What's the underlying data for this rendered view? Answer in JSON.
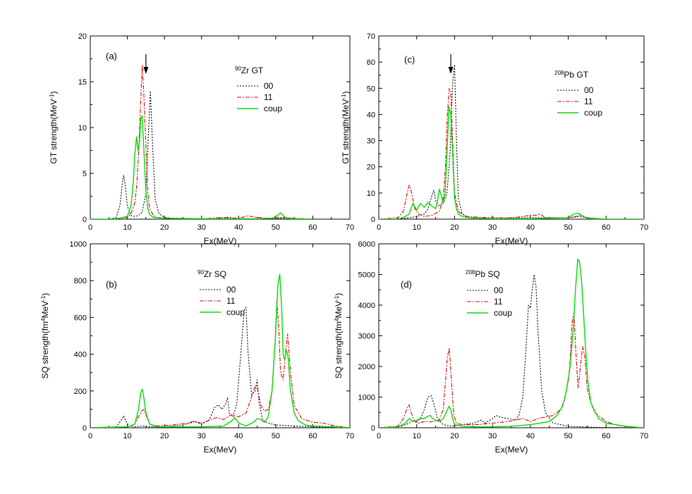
{
  "chart_data": [
    {
      "type": "line",
      "panel_label": "(a)",
      "title": "Zr GT",
      "title_sup": "90",
      "xlabel": "Ex(MeV)",
      "ylabel": "GT strength(MeV",
      "ylabel_sup": "-1",
      "ylabel_end": ")",
      "xlim": [
        0,
        70
      ],
      "ylim": [
        0,
        20
      ],
      "xticks": [
        0,
        10,
        20,
        30,
        40,
        50,
        60,
        70
      ],
      "yticks": [
        0,
        5,
        10,
        15,
        20
      ],
      "arrow_x": 15,
      "series": [
        {
          "name": "00",
          "color": "#000000",
          "dash": "2,2",
          "x": [
            0,
            5,
            7,
            8,
            8.6,
            9,
            9.5,
            10,
            11,
            12,
            13,
            14,
            15,
            15.6,
            16.2,
            16.8,
            17.5,
            18.5,
            20,
            22,
            30,
            37,
            43,
            48,
            52,
            55,
            60
          ],
          "y": [
            0,
            0,
            0.2,
            1.5,
            3.8,
            4.8,
            3.5,
            1.4,
            0.4,
            0.3,
            0.4,
            0.8,
            2.8,
            8.5,
            14,
            8,
            2.2,
            0.6,
            0.2,
            0.1,
            0.05,
            0.1,
            0.05,
            0.05,
            0.1,
            0.05,
            0
          ]
        },
        {
          "name": "11",
          "color": "#e00000",
          "dash": "6,2,2,2",
          "x": [
            0,
            5,
            8,
            10,
            11,
            12,
            12.5,
            13,
            13.5,
            14,
            14.4,
            15,
            15.5,
            16,
            17,
            18,
            20,
            30,
            37,
            40,
            42.5,
            45,
            48,
            50,
            52,
            55,
            60
          ],
          "y": [
            0,
            0,
            0.1,
            0.2,
            0.6,
            1.8,
            3.5,
            7,
            12,
            16.8,
            14,
            8,
            3,
            1.2,
            0.4,
            0.2,
            0.1,
            0.05,
            0.2,
            0.1,
            0.35,
            0.2,
            0.1,
            0.15,
            0.2,
            0.1,
            0
          ]
        },
        {
          "name": "coup",
          "color": "#00dd00",
          "dash": "",
          "x": [
            0,
            5,
            8,
            10,
            11,
            11.6,
            12,
            12.5,
            12.9,
            13.3,
            13.6,
            14,
            14.4,
            15,
            15.5,
            16,
            17,
            20,
            30,
            45,
            49,
            50.5,
            51.3,
            52,
            53,
            55,
            60
          ],
          "y": [
            0,
            0,
            0.1,
            0.3,
            1.5,
            4,
            7,
            9,
            7.5,
            8.5,
            11,
            11.3,
            8,
            3,
            1.2,
            0.5,
            0.2,
            0.1,
            0.05,
            0.05,
            0.1,
            0.4,
            0.7,
            0.4,
            0.1,
            0.05,
            0
          ]
        }
      ]
    },
    {
      "type": "line",
      "panel_label": "(b)",
      "title": "Zr SQ",
      "title_sup": "90",
      "xlabel": "Ex(MeV)",
      "ylabel": "SQ strength(fm",
      "ylabel_sup": "4",
      "ylabel_mid": "MeV",
      "ylabel_sup2": "-1",
      "ylabel_end": ")",
      "xlim": [
        0,
        70
      ],
      "ylim": [
        0,
        1000
      ],
      "xticks": [
        0,
        10,
        20,
        30,
        40,
        50,
        60,
        70
      ],
      "yticks": [
        0,
        200,
        400,
        600,
        800,
        1000
      ],
      "series": [
        {
          "name": "00",
          "color": "#000000",
          "dash": "2,2",
          "x": [
            0,
            7,
            8.5,
            9,
            9.6,
            10.5,
            12,
            14,
            16,
            20,
            25,
            27,
            28,
            30,
            32,
            33.5,
            34.5,
            35.5,
            36.5,
            37,
            37.5,
            38.5,
            39.5,
            40.5,
            41.5,
            42,
            42.5,
            43.5,
            44.5,
            45,
            45.5,
            46.5,
            48,
            50,
            55,
            60,
            70
          ],
          "y": [
            0,
            5,
            45,
            65,
            35,
            10,
            5,
            10,
            5,
            5,
            15,
            25,
            35,
            20,
            40,
            110,
            125,
            100,
            130,
            165,
            80,
            60,
            130,
            380,
            640,
            655,
            420,
            180,
            200,
            260,
            140,
            40,
            25,
            15,
            10,
            5,
            0
          ]
        },
        {
          "name": "11",
          "color": "#e00000",
          "dash": "6,2,2,2",
          "x": [
            0,
            10,
            12,
            13,
            14,
            14.5,
            15,
            16,
            18,
            22,
            26,
            28,
            30,
            32,
            34,
            36,
            38,
            40,
            42,
            43,
            44.5,
            45,
            46,
            47,
            48,
            49,
            49.8,
            50.3,
            50.8,
            51.3,
            52,
            52.7,
            53.2,
            54,
            55,
            57,
            60,
            63,
            66,
            70
          ],
          "y": [
            0,
            5,
            20,
            60,
            95,
            100,
            70,
            20,
            10,
            15,
            25,
            35,
            25,
            40,
            55,
            45,
            70,
            60,
            80,
            140,
            230,
            220,
            120,
            90,
            100,
            200,
            450,
            690,
            550,
            300,
            260,
            420,
            510,
            300,
            120,
            50,
            30,
            25,
            10,
            0
          ]
        },
        {
          "name": "coup",
          "color": "#00dd00",
          "dash": "",
          "x": [
            0,
            10,
            12,
            13,
            13.6,
            14,
            14.4,
            15,
            16,
            18,
            22,
            30,
            36,
            38,
            39,
            40,
            42,
            44,
            45,
            46,
            47,
            48,
            49,
            50,
            50.6,
            51.1,
            51.6,
            52,
            52.4,
            52.9,
            53.3,
            54,
            55,
            56,
            58,
            60,
            65,
            70
          ],
          "y": [
            0,
            5,
            20,
            100,
            190,
            210,
            170,
            80,
            20,
            5,
            5,
            5,
            10,
            35,
            55,
            25,
            10,
            30,
            50,
            45,
            30,
            60,
            200,
            520,
            780,
            835,
            650,
            400,
            370,
            420,
            390,
            200,
            80,
            40,
            15,
            10,
            5,
            0
          ]
        }
      ]
    },
    {
      "type": "line",
      "panel_label": "(c)",
      "title": "Pb GT",
      "title_sup": "208",
      "xlabel": "Ex(MeV)",
      "ylabel": "GT strength(MeV",
      "ylabel_sup": "-1",
      "ylabel_end": ")",
      "xlim": [
        0,
        70
      ],
      "ylim": [
        0,
        70
      ],
      "xticks": [
        0,
        10,
        20,
        30,
        40,
        50,
        60,
        70
      ],
      "yticks": [
        0,
        10,
        20,
        30,
        40,
        50,
        60,
        70
      ],
      "arrow_x": 19,
      "series": [
        {
          "name": "00",
          "color": "#000000",
          "dash": "2,2",
          "x": [
            0,
            5,
            8,
            10,
            12,
            13,
            14,
            14.5,
            15,
            16,
            17,
            18,
            18.8,
            19.5,
            20,
            20.5,
            21,
            22,
            24,
            30,
            40,
            50,
            53,
            55,
            60,
            70
          ],
          "y": [
            0,
            0,
            0.5,
            1,
            2,
            4,
            9,
            11,
            7,
            5,
            6,
            10,
            25,
            52,
            59,
            30,
            8,
            2,
            0.5,
            0.3,
            0.5,
            0.5,
            1,
            0.5,
            0,
            0
          ]
        },
        {
          "name": "11",
          "color": "#e00000",
          "dash": "6,2,2,2",
          "x": [
            0,
            5,
            6.5,
            7.5,
            8,
            8.5,
            9.5,
            10.5,
            12,
            14,
            16,
            17,
            17.6,
            18.1,
            18.6,
            19,
            19.5,
            20,
            21,
            23,
            30,
            35,
            38,
            40,
            41.5,
            42.5,
            44,
            46,
            50,
            52,
            53,
            55,
            60,
            70
          ],
          "y": [
            0,
            0.5,
            3,
            10,
            13,
            11,
            4,
            2,
            1,
            1.5,
            3,
            8,
            20,
            40,
            50,
            48,
            30,
            10,
            3,
            1,
            0.5,
            0.5,
            1,
            1.5,
            1.5,
            2,
            0.5,
            0.5,
            0.5,
            1,
            1.5,
            0.5,
            0,
            0
          ]
        },
        {
          "name": "coup",
          "color": "#00dd00",
          "dash": "",
          "x": [
            0,
            5,
            7,
            8,
            9,
            10,
            11,
            12,
            13,
            14,
            15,
            15.5,
            16,
            16.5,
            17,
            17.5,
            18,
            18.5,
            19,
            19.5,
            20,
            20.5,
            21,
            22,
            24,
            30,
            40,
            50,
            51.5,
            52.5,
            53.5,
            55,
            60,
            70
          ],
          "y": [
            0,
            0,
            1,
            2,
            6,
            3.5,
            6,
            4.5,
            6.5,
            5,
            4,
            7,
            11.5,
            9,
            6,
            10,
            25,
            43,
            40,
            25,
            8,
            4,
            2,
            1,
            0.5,
            0.2,
            0.2,
            0.5,
            2,
            2.3,
            1.5,
            0.3,
            0,
            0
          ]
        }
      ]
    },
    {
      "type": "line",
      "panel_label": "(d)",
      "title": "Pb SQ",
      "title_sup": "208",
      "xlabel": "Ex(MeV)",
      "ylabel": "SQ strength(fm",
      "ylabel_sup": "4",
      "ylabel_mid": "MeV",
      "ylabel_sup2": "-1",
      "ylabel_end": ")",
      "xlim": [
        0,
        70
      ],
      "ylim": [
        0,
        6000
      ],
      "xticks": [
        0,
        10,
        20,
        30,
        40,
        50,
        60,
        70
      ],
      "yticks": [
        0,
        1000,
        2000,
        3000,
        4000,
        5000,
        6000
      ],
      "series": [
        {
          "name": "00",
          "color": "#000000",
          "dash": "2,2",
          "x": [
            0,
            6,
            8,
            9,
            10,
            11,
            12,
            13,
            13.8,
            14.5,
            15.5,
            17,
            19,
            22,
            25,
            27,
            28,
            30,
            31,
            32,
            34,
            36,
            37,
            38,
            38.8,
            39.5,
            40,
            40.5,
            41,
            41.5,
            42,
            43,
            44,
            46,
            50,
            55,
            60,
            70
          ],
          "y": [
            0,
            50,
            150,
            250,
            200,
            300,
            600,
            1000,
            1050,
            800,
            300,
            100,
            50,
            100,
            150,
            250,
            150,
            300,
            400,
            350,
            300,
            250,
            400,
            1000,
            2500,
            4000,
            3900,
            4500,
            5000,
            4600,
            3200,
            1200,
            500,
            150,
            50,
            20,
            10,
            0
          ]
        },
        {
          "name": "11",
          "color": "#e00000",
          "dash": "6,2,2,2",
          "x": [
            0,
            5,
            6.5,
            7.5,
            8,
            8.5,
            9.5,
            10.5,
            12,
            14,
            16,
            17,
            17.6,
            18.1,
            18.6,
            19.2,
            19.8,
            20.5,
            22,
            26,
            30,
            34,
            36,
            38,
            40,
            42,
            44,
            46,
            48,
            49,
            50,
            50.5,
            51,
            51.5,
            52,
            52.6,
            53.2,
            53.8,
            54.4,
            55,
            56,
            57,
            58,
            60,
            63,
            66,
            70
          ],
          "y": [
            0,
            50,
            300,
            650,
            750,
            500,
            200,
            150,
            200,
            200,
            250,
            600,
            1500,
            2300,
            2600,
            1500,
            400,
            150,
            100,
            100,
            150,
            200,
            250,
            300,
            200,
            300,
            350,
            400,
            600,
            900,
            1500,
            2200,
            3400,
            3750,
            2500,
            1300,
            2000,
            2650,
            2300,
            1300,
            800,
            500,
            400,
            200,
            80,
            30,
            0
          ]
        },
        {
          "name": "coup",
          "color": "#00dd00",
          "dash": "",
          "x": [
            0,
            5,
            7,
            8,
            9,
            10,
            11,
            12,
            13,
            13.6,
            14.2,
            15,
            16,
            17,
            18,
            18.5,
            19,
            19.5,
            20,
            22,
            26,
            30,
            35,
            40,
            45,
            47,
            48.5,
            49.5,
            50.5,
            51.3,
            51.9,
            52.5,
            53,
            53.5,
            54,
            54.6,
            55.2,
            56,
            58,
            60,
            65,
            70
          ],
          "y": [
            0,
            20,
            150,
            300,
            200,
            250,
            300,
            300,
            380,
            400,
            300,
            250,
            200,
            300,
            550,
            700,
            600,
            300,
            100,
            50,
            30,
            30,
            50,
            100,
            200,
            400,
            700,
            1200,
            2000,
            3200,
            4500,
            5500,
            5400,
            4800,
            3800,
            2500,
            1500,
            800,
            300,
            150,
            50,
            0
          ]
        }
      ]
    }
  ]
}
